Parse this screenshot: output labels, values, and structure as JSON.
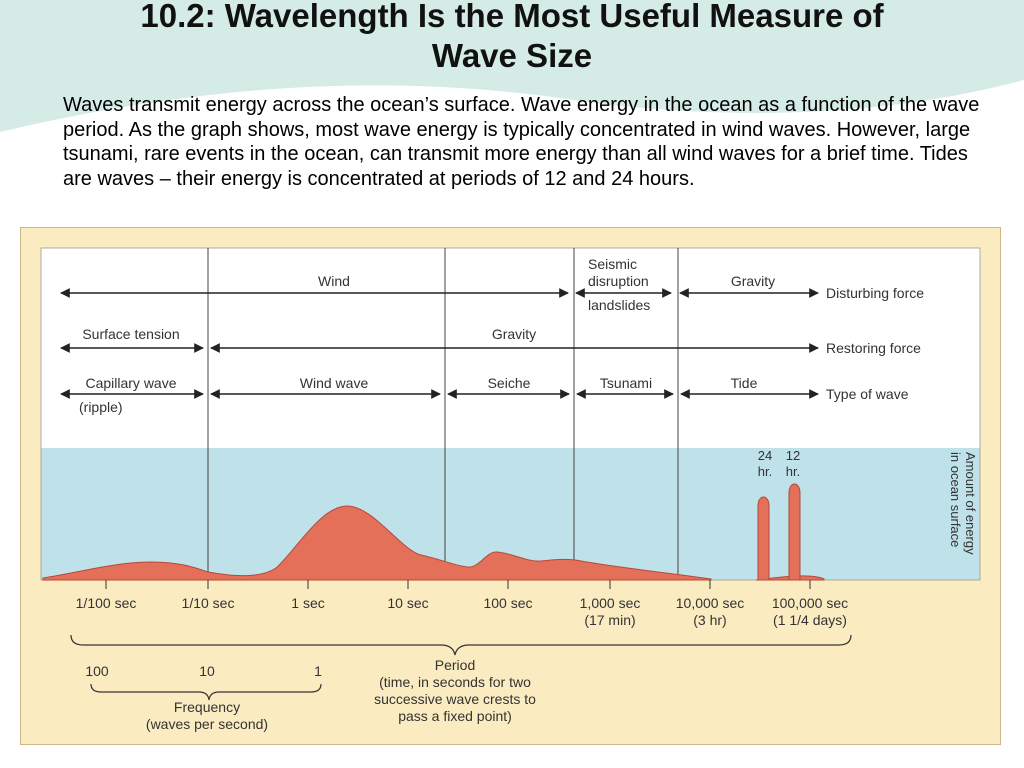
{
  "slide": {
    "title_line1": "10.2: Wavelength Is the Most Useful Measure of",
    "title_line2": "Wave Size",
    "paragraph": "Waves transmit energy across the ocean’s surface. Wave energy in the ocean as a function of the wave period. As the graph shows, most wave energy is typically concentrated in wind waves. However, large tsunami, rare events in the ocean, can transmit more energy than all wind waves for a brief time. Tides are waves – their energy is concentrated at periods of 12 and 24 hours."
  },
  "colors": {
    "background_wave": "#d5ebe6",
    "panel": "#fbebc0",
    "energy_band": "#bfe1e9",
    "energy_fill": "#e5705a",
    "energy_stroke": "#b44a3a",
    "line": "#222222"
  },
  "diagram": {
    "rows": {
      "disturbing": {
        "wind": "Wind",
        "seismic_1": "Seismic",
        "seismic_2": "disruption",
        "landslides": "landslides",
        "gravity": "Gravity",
        "label": "Disturbing force"
      },
      "restoring": {
        "surface_tension": "Surface tension",
        "gravity": "Gravity",
        "label": "Restoring force"
      },
      "type": {
        "capillary": "Capillary wave",
        "ripple": "(ripple)",
        "wind_wave": "Wind wave",
        "seiche": "Seiche",
        "tsunami": "Tsunami",
        "tide": "Tide",
        "label": "Type of wave"
      }
    },
    "energy_axis_line1": "Amount of energy",
    "energy_axis_line2": "in ocean surface",
    "tide_peaks": {
      "p24_num": "24",
      "p24_unit": "hr.",
      "p12_num": "12",
      "p12_unit": "hr."
    },
    "period_ticks": [
      {
        "label": "1/100 sec",
        "sub": ""
      },
      {
        "label": "1/10 sec",
        "sub": ""
      },
      {
        "label": "1 sec",
        "sub": ""
      },
      {
        "label": "10 sec",
        "sub": ""
      },
      {
        "label": "100 sec",
        "sub": ""
      },
      {
        "label": "1,000 sec",
        "sub": "(17 min)"
      },
      {
        "label": "10,000 sec",
        "sub": "(3 hr)"
      },
      {
        "label": "100,000 sec",
        "sub": "(1 1/4 days)"
      }
    ],
    "period_caption": [
      "Period",
      "(time, in seconds for two",
      "successive wave crests to",
      "pass a fixed point)"
    ],
    "frequency_ticks": [
      "100",
      "10",
      "1"
    ],
    "frequency_caption": [
      "Frequency",
      "(waves per second)"
    ]
  }
}
